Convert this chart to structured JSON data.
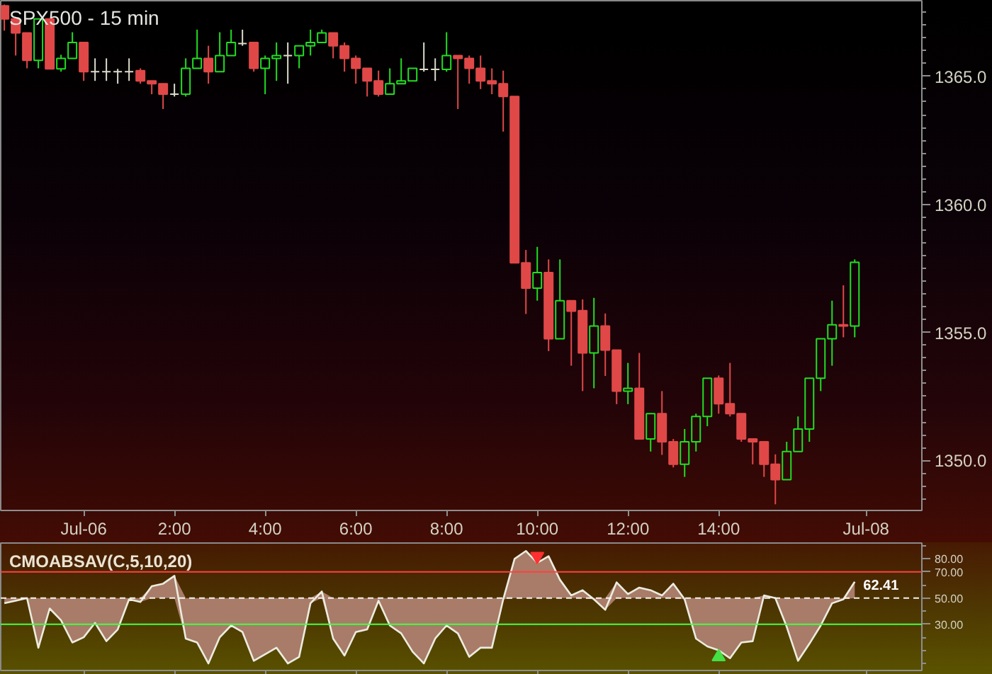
{
  "chart_data": [
    {
      "type": "candlestick",
      "title": "SPX500 - 15 min",
      "x": [
        -1.75,
        -1.5,
        -1.25,
        -1.0,
        -0.75,
        -0.5,
        -0.25,
        0,
        0.25,
        0.5,
        0.75,
        1,
        1.25,
        1.5,
        1.75,
        2,
        2.25,
        2.5,
        2.75,
        3,
        3.25,
        3.5,
        3.75,
        4,
        4.25,
        4.5,
        4.75,
        5,
        5.25,
        5.5,
        5.75,
        6,
        6.25,
        6.5,
        6.75,
        7,
        7.25,
        7.5,
        7.75,
        8,
        8.25,
        8.5,
        8.75,
        9,
        9.25,
        9.5,
        9.75,
        10,
        10.25,
        10.5,
        10.75,
        11,
        11.25,
        11.5,
        11.75,
        12,
        12.25,
        12.5,
        12.75,
        13,
        13.25,
        13.5,
        13.75,
        14,
        14.25,
        14.5,
        14.75,
        15,
        15.25,
        15.5,
        15.75,
        16,
        16.25,
        16.5,
        16.75,
        17
      ],
      "ohlc": [
        [
          1367.75,
          1367.8,
          1366.78,
          1367.24
        ],
        [
          1367.24,
          1367.24,
          1365.81,
          1366.69
        ],
        [
          1366.69,
          1366.69,
          1365.31,
          1365.62
        ],
        [
          1365.62,
          1367.24,
          1365.31,
          1367.24
        ],
        [
          1367.24,
          1367.24,
          1365.29,
          1365.29
        ],
        [
          1365.29,
          1365.84,
          1365.18,
          1365.7
        ],
        [
          1365.7,
          1366.72,
          1365.7,
          1366.32
        ],
        [
          1366.32,
          1366.32,
          1364.82,
          1365.18
        ],
        [
          1365.18,
          1365.7,
          1364.82,
          1365.18
        ],
        [
          1365.18,
          1365.7,
          1364.82,
          1365.18
        ],
        [
          1365.18,
          1365.29,
          1364.71,
          1365.18
        ],
        [
          1365.18,
          1365.7,
          1364.82,
          1365.18
        ],
        [
          1365.22,
          1365.31,
          1364.71,
          1364.82
        ],
        [
          1364.82,
          1364.82,
          1364.3,
          1364.71
        ],
        [
          1364.71,
          1364.71,
          1363.72,
          1364.3
        ],
        [
          1364.3,
          1364.71,
          1364.21,
          1364.3
        ],
        [
          1364.3,
          1365.7,
          1364.21,
          1365.31
        ],
        [
          1365.31,
          1366.82,
          1365.31,
          1365.7
        ],
        [
          1365.7,
          1366.19,
          1364.71,
          1365.18
        ],
        [
          1365.18,
          1366.72,
          1365.18,
          1365.81
        ],
        [
          1365.81,
          1366.82,
          1365.81,
          1366.32
        ],
        [
          1366.28,
          1366.82,
          1366.19,
          1366.28
        ],
        [
          1366.32,
          1366.32,
          1365.18,
          1365.31
        ],
        [
          1365.31,
          1365.81,
          1364.3,
          1365.7
        ],
        [
          1365.7,
          1366.32,
          1364.82,
          1365.81
        ],
        [
          1365.81,
          1366.32,
          1364.71,
          1365.81
        ],
        [
          1365.81,
          1366.19,
          1365.31,
          1366.19
        ],
        [
          1366.19,
          1366.82,
          1365.81,
          1366.32
        ],
        [
          1366.32,
          1366.82,
          1366.32,
          1366.69
        ],
        [
          1366.69,
          1366.69,
          1365.7,
          1366.19
        ],
        [
          1366.19,
          1366.32,
          1365.18,
          1365.7
        ],
        [
          1365.7,
          1365.81,
          1364.71,
          1365.31
        ],
        [
          1365.31,
          1365.31,
          1364.21,
          1364.82
        ],
        [
          1364.82,
          1365.22,
          1364.21,
          1364.3
        ],
        [
          1364.3,
          1365.31,
          1364.3,
          1364.71
        ],
        [
          1364.71,
          1365.7,
          1364.71,
          1364.82
        ],
        [
          1364.82,
          1365.31,
          1364.82,
          1365.31
        ],
        [
          1365.27,
          1366.32,
          1365.18,
          1365.27
        ],
        [
          1365.27,
          1365.7,
          1364.82,
          1365.27
        ],
        [
          1365.27,
          1366.72,
          1365.18,
          1365.81
        ],
        [
          1365.81,
          1365.81,
          1363.72,
          1365.7
        ],
        [
          1365.7,
          1365.81,
          1364.71,
          1365.31
        ],
        [
          1365.31,
          1365.81,
          1364.5,
          1364.82
        ],
        [
          1364.82,
          1365.31,
          1364.3,
          1364.71
        ],
        [
          1364.71,
          1365.22,
          1362.84,
          1364.21
        ],
        [
          1364.21,
          1364.21,
          1357.72,
          1357.72
        ],
        [
          1357.72,
          1358.22,
          1355.72,
          1356.73
        ],
        [
          1356.73,
          1358.34,
          1356.24,
          1357.34
        ],
        [
          1357.34,
          1357.85,
          1354.27,
          1354.75
        ],
        [
          1354.75,
          1357.85,
          1354.75,
          1356.24
        ],
        [
          1356.24,
          1356.24,
          1353.7,
          1355.83
        ],
        [
          1355.85,
          1356.29,
          1352.71,
          1354.2
        ],
        [
          1354.2,
          1356.35,
          1352.82,
          1355.25
        ],
        [
          1355.25,
          1355.74,
          1353.3,
          1354.31
        ],
        [
          1354.31,
          1354.31,
          1352.2,
          1352.71
        ],
        [
          1352.71,
          1353.81,
          1352.2,
          1352.82
        ],
        [
          1352.82,
          1354.2,
          1350.84,
          1350.84
        ],
        [
          1350.84,
          1351.83,
          1350.35,
          1351.83
        ],
        [
          1351.83,
          1352.71,
          1350.22,
          1350.73
        ],
        [
          1350.73,
          1350.84,
          1349.73,
          1349.85
        ],
        [
          1349.85,
          1351.23,
          1349.36,
          1350.73
        ],
        [
          1350.73,
          1351.83,
          1350.35,
          1351.72
        ],
        [
          1351.72,
          1353.21,
          1351.34,
          1353.21
        ],
        [
          1353.21,
          1353.32,
          1351.83,
          1352.22
        ],
        [
          1352.22,
          1353.81,
          1351.72,
          1351.83
        ],
        [
          1351.83,
          1351.83,
          1350.73,
          1350.84
        ],
        [
          1350.84,
          1350.84,
          1349.85,
          1350.73
        ],
        [
          1350.73,
          1350.73,
          1349.36,
          1349.85
        ],
        [
          1349.85,
          1350.24,
          1348.29,
          1349.25
        ],
        [
          1349.25,
          1350.73,
          1349.25,
          1350.35
        ],
        [
          1350.35,
          1351.72,
          1350.35,
          1351.23
        ],
        [
          1351.23,
          1353.21,
          1350.73,
          1353.21
        ],
        [
          1353.21,
          1354.75,
          1352.71,
          1354.75
        ],
        [
          1354.75,
          1356.24,
          1353.7,
          1355.3
        ],
        [
          1355.3,
          1356.84,
          1354.81,
          1355.25
        ],
        [
          1355.25,
          1357.85,
          1354.81,
          1357.74
        ]
      ],
      "colors": [
        "#e04848",
        "#e04848",
        "#e04848",
        "#22dd22",
        "#e04848",
        "#22dd22",
        "#22dd22",
        "#e04848",
        "#dcdccc",
        "#dcdccc",
        "#dcdccc",
        "#dcdccc",
        "#e04848",
        "#e04848",
        "#e04848",
        "#dcdccc",
        "#22dd22",
        "#22dd22",
        "#e04848",
        "#22dd22",
        "#22dd22",
        "#dcdccc",
        "#e04848",
        "#22dd22",
        "#22dd22",
        "#dcdccc",
        "#22dd22",
        "#22dd22",
        "#22dd22",
        "#e04848",
        "#e04848",
        "#e04848",
        "#e04848",
        "#e04848",
        "#22dd22",
        "#22dd22",
        "#22dd22",
        "#dcdccc",
        "#dcdccc",
        "#22dd22",
        "#e04848",
        "#e04848",
        "#e04848",
        "#e04848",
        "#e04848",
        "#e04848",
        "#e04848",
        "#22dd22",
        "#e04848",
        "#22dd22",
        "#e04848",
        "#e04848",
        "#22dd22",
        "#e04848",
        "#e04848",
        "#22dd22",
        "#e04848",
        "#22dd22",
        "#e04848",
        "#e04848",
        "#22dd22",
        "#22dd22",
        "#22dd22",
        "#e04848",
        "#e04848",
        "#e04848",
        "#e04848",
        "#e04848",
        "#e04848",
        "#22dd22",
        "#22dd22",
        "#22dd22",
        "#22dd22",
        "#22dd22",
        "#e04848",
        "#22dd22"
      ],
      "xlim": [
        -1.83,
        18.48
      ],
      "ylim": [
        1348.05,
        1367.95
      ],
      "xticks": [
        {
          "value": 0,
          "label": "Jul-06"
        },
        {
          "value": 2,
          "label": "2:00"
        },
        {
          "value": 4,
          "label": "4:00"
        },
        {
          "value": 6,
          "label": "6:00"
        },
        {
          "value": 8,
          "label": "8:00"
        },
        {
          "value": 10,
          "label": "10:00"
        },
        {
          "value": 12,
          "label": "12:00"
        },
        {
          "value": 14,
          "label": "14:00"
        },
        {
          "value": 17.25,
          "label": "Jul-08"
        }
      ],
      "yticks": [
        {
          "value": 1350,
          "label": "1350.0"
        },
        {
          "value": 1355,
          "label": "1355.0"
        },
        {
          "value": 1360,
          "label": "1360.0"
        },
        {
          "value": 1365,
          "label": "1365.0"
        },
        {
          "value": 1348.5,
          "label": null
        },
        {
          "value": 1349,
          "label": null
        },
        {
          "value": 1349.5,
          "label": null
        },
        {
          "value": 1350.5,
          "label": null
        },
        {
          "value": 1351,
          "label": null
        },
        {
          "value": 1351.5,
          "label": null
        },
        {
          "value": 1352,
          "label": null
        },
        {
          "value": 1352.5,
          "label": null
        },
        {
          "value": 1353,
          "label": null
        },
        {
          "value": 1353.5,
          "label": null
        },
        {
          "value": 1354,
          "label": null
        },
        {
          "value": 1354.5,
          "label": null
        },
        {
          "value": 1355.5,
          "label": null
        },
        {
          "value": 1356,
          "label": null
        },
        {
          "value": 1356.5,
          "label": null
        },
        {
          "value": 1357,
          "label": null
        },
        {
          "value": 1357.5,
          "label": null
        },
        {
          "value": 1358,
          "label": null
        },
        {
          "value": 1358.5,
          "label": null
        },
        {
          "value": 1359,
          "label": null
        },
        {
          "value": 1359.5,
          "label": null
        },
        {
          "value": 1360.5,
          "label": null
        },
        {
          "value": 1361,
          "label": null
        },
        {
          "value": 1361.5,
          "label": null
        },
        {
          "value": 1362,
          "label": null
        },
        {
          "value": 1362.5,
          "label": null
        },
        {
          "value": 1363,
          "label": null
        },
        {
          "value": 1363.5,
          "label": null
        },
        {
          "value": 1364,
          "label": null
        },
        {
          "value": 1364.5,
          "label": null
        },
        {
          "value": 1365.5,
          "label": null
        },
        {
          "value": 1366,
          "label": null
        },
        {
          "value": 1366.5,
          "label": null
        },
        {
          "value": 1367,
          "label": null
        },
        {
          "value": 1367.5,
          "label": null
        }
      ]
    },
    {
      "type": "line",
      "title": "CMOABSAV(C,5,10,20)",
      "x": [
        -1.75,
        -1.5,
        -1.25,
        -1.0,
        -0.75,
        -0.5,
        -0.25,
        0,
        0.25,
        0.5,
        0.75,
        1,
        1.25,
        1.5,
        1.75,
        2,
        2.25,
        2.5,
        2.75,
        3,
        3.25,
        3.5,
        3.75,
        4,
        4.25,
        4.5,
        4.75,
        5,
        5.25,
        5.5,
        5.75,
        6,
        6.25,
        6.5,
        6.75,
        7,
        7.25,
        7.5,
        7.75,
        8,
        8.25,
        8.5,
        8.75,
        9,
        9.25,
        9.5,
        9.75,
        10,
        10.25,
        10.5,
        10.75,
        11,
        11.25,
        11.5,
        11.75,
        12,
        12.25,
        12.5,
        12.75,
        13,
        13.25,
        13.5,
        13.75,
        14,
        14.25,
        14.5,
        14.75,
        15,
        15.25,
        15.5,
        15.75,
        16,
        16.25,
        16.5,
        16.75,
        17
      ],
      "series": [
        {
          "color": "#ececdf",
          "colors": [
            "#a87c68",
            "#a87c68",
            "#a87c68",
            "#a87c68",
            "#a87c68",
            "#a87c68",
            "#a87c68",
            "#a87c68",
            "#a87c68",
            "#a87c68",
            "#a87c68",
            "#a87c68",
            "#a87c68",
            "#a87c68",
            "#a87c68",
            "#a87c68",
            "#a87c68",
            "#a87c68",
            "#a87c68",
            "#a87c68",
            "#a87c68",
            "#a87c68",
            "#a87c68",
            "#a87c68",
            "#a87c68",
            "#a87c68",
            "#a87c68",
            "#a87c68",
            "#a87c68",
            "#a87c68",
            "#a87c68",
            "#a87c68",
            "#a87c68",
            "#a87c68",
            "#a87c68",
            "#a87c68",
            "#a87c68",
            "#a87c68",
            "#a87c68",
            "#a87c68",
            "#a87c68",
            "#a87c68",
            "#a87c68",
            "#a87c68",
            "#a87c68",
            "#a87c68",
            "#a87c68",
            "#a87c68",
            "#a87c68",
            "#a87c68",
            "#a87c68",
            "#a87c68",
            "#a87c68",
            "#a87c68",
            "#a87c68",
            "#a87c68",
            "#a87c68",
            "#a87c68",
            "#a87c68",
            "#a87c68",
            "#a87c68",
            "#a87c68",
            "#a87c68",
            "#a87c68",
            "#a87c68",
            "#a87c68",
            "#a87c68",
            "#a87c68",
            "#a87c68",
            "#a87c68",
            "#a87c68",
            "#a87c68",
            "#a87c68",
            "#a87c68",
            "#a87c68",
            "#a87c68"
          ],
          "values": [
            46,
            48,
            50,
            12,
            42,
            33,
            16,
            20,
            31,
            17,
            26,
            49,
            47,
            59,
            61,
            67,
            19,
            16,
            0,
            20,
            29,
            24,
            2,
            7,
            12,
            0,
            5,
            46,
            55,
            19,
            6,
            24,
            26,
            48,
            29,
            23,
            9,
            0,
            19,
            29,
            23,
            5,
            12,
            12,
            49,
            80,
            86,
            77,
            82,
            64,
            52,
            56,
            49,
            41,
            62,
            53,
            58,
            56,
            52,
            61,
            49,
            19,
            13,
            10,
            4,
            16,
            17,
            52,
            50,
            28,
            2,
            15,
            29,
            46,
            49,
            62.41
          ],
          "lower": [
            46,
            48,
            50,
            12,
            42,
            33,
            16,
            20,
            31,
            17,
            26,
            49,
            47,
            50,
            50,
            50,
            19,
            16,
            0,
            20,
            29,
            24,
            2,
            7,
            12,
            0,
            5,
            46,
            50,
            19,
            6,
            24,
            26,
            48,
            29,
            23,
            9,
            0,
            19,
            29,
            23,
            5,
            12,
            12,
            49,
            50,
            50,
            50,
            50,
            50,
            50,
            50,
            49,
            41,
            50,
            50,
            50,
            50,
            50,
            50,
            49,
            19,
            13,
            10,
            4,
            16,
            17,
            50,
            50,
            28,
            2,
            15,
            29,
            46,
            49,
            50
          ],
          "upper": [
            50,
            50,
            50,
            50,
            50,
            50,
            50,
            50,
            50,
            50,
            50,
            50,
            50,
            59,
            61,
            67,
            50,
            50,
            50,
            50,
            50,
            50,
            50,
            50,
            50,
            50,
            50,
            50,
            55,
            50,
            50,
            50,
            50,
            50,
            50,
            50,
            50,
            50,
            50,
            50,
            50,
            50,
            50,
            50,
            50,
            80,
            86,
            77,
            82,
            64,
            52,
            56,
            50,
            50,
            62,
            53,
            58,
            56,
            52,
            61,
            50,
            50,
            50,
            50,
            50,
            50,
            50,
            52,
            50,
            50,
            50,
            50,
            50,
            50,
            50,
            62.41
          ],
          "value_labels": [
            null,
            null,
            null,
            null,
            null,
            null,
            null,
            null,
            null,
            null,
            null,
            null,
            null,
            null,
            null,
            null,
            null,
            null,
            null,
            null,
            null,
            null,
            null,
            null,
            null,
            null,
            null,
            null,
            null,
            null,
            null,
            null,
            null,
            null,
            null,
            null,
            null,
            null,
            null,
            null,
            null,
            null,
            null,
            null,
            null,
            null,
            null,
            null,
            null,
            null,
            null,
            null,
            null,
            null,
            null,
            null,
            null,
            null,
            null,
            null,
            null,
            null,
            null,
            null,
            null,
            null,
            null,
            null,
            null,
            null,
            null,
            null,
            null,
            null,
            null,
            "62.41"
          ]
        },
        {
          "type": "scatter",
          "color": "#ff3030",
          "marker": "triangle",
          "x": [
            10
          ],
          "values": [
            82
          ]
        },
        {
          "type": "scatter",
          "color": "#44e044",
          "marker": "triangle",
          "x": [
            14
          ],
          "values": [
            5
          ]
        }
      ],
      "xlim": [
        -1.83,
        18.48
      ],
      "ylim": [
        -5.4,
        92.1
      ],
      "xticks": [
        {
          "value": 0,
          "label": null
        },
        {
          "value": 2,
          "label": null
        },
        {
          "value": 4,
          "label": null
        },
        {
          "value": 6,
          "label": null
        },
        {
          "value": 8,
          "label": null
        },
        {
          "value": 10,
          "label": null
        },
        {
          "value": 12,
          "label": null
        },
        {
          "value": 14,
          "label": null
        },
        {
          "value": 17.25,
          "label": null
        }
      ],
      "yticks": [
        {
          "value": 30,
          "label": "30.00"
        },
        {
          "value": 50,
          "label": "50.00"
        },
        {
          "value": 70,
          "label": "70.00"
        },
        {
          "value": 80,
          "label": "80.00"
        },
        {
          "value": 0,
          "label": null
        },
        {
          "value": 10,
          "label": null
        },
        {
          "value": 20,
          "label": null
        },
        {
          "value": 40,
          "label": null
        },
        {
          "value": 60,
          "label": null
        },
        {
          "value": 90,
          "label": null
        }
      ],
      "ref_lines": [
        {
          "axis": "y",
          "value": 70,
          "color": "#ff4040"
        },
        {
          "axis": "y",
          "value": 50,
          "color": "#f4f4f4",
          "line_style": "dashed"
        },
        {
          "axis": "y",
          "value": 30,
          "color": "#44ff44"
        }
      ],
      "tick_labels": "y"
    }
  ]
}
